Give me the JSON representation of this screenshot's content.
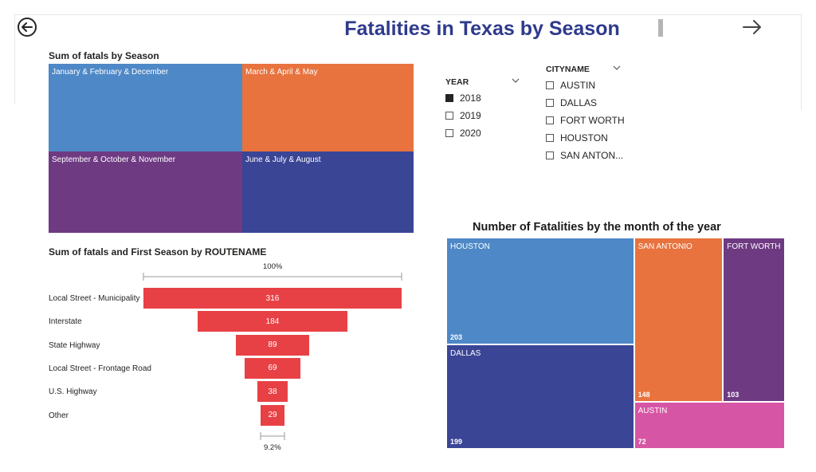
{
  "page": {
    "title": "Fatalities in Texas by Season"
  },
  "nav": {
    "back_icon": "back-arrow-icon",
    "forward_icon": "forward-arrow-icon"
  },
  "season_treemap": {
    "title": "Sum of fatals by Season",
    "tiles": [
      {
        "label": "January & February & December",
        "color": "#4e88c7"
      },
      {
        "label": "March & April & May",
        "color": "#e8733e"
      },
      {
        "label": "September & October & November",
        "color": "#6e3a82"
      },
      {
        "label": "June & July & August",
        "color": "#3a4596"
      }
    ]
  },
  "year_slicer": {
    "header": "YEAR",
    "options": [
      {
        "label": "2018",
        "checked": true
      },
      {
        "label": "2019",
        "checked": false
      },
      {
        "label": "2020",
        "checked": false
      }
    ]
  },
  "city_slicer": {
    "header": "CITYNAME",
    "options": [
      {
        "label": "AUSTIN",
        "checked": false
      },
      {
        "label": "DALLAS",
        "checked": false
      },
      {
        "label": "FORT WORTH",
        "checked": false
      },
      {
        "label": "HOUSTON",
        "checked": false
      },
      {
        "label": "SAN ANTON...",
        "checked": false
      }
    ]
  },
  "chart_data": [
    {
      "type": "funnel",
      "title": "Sum of fatals and First Season by ROUTENAME",
      "categories": [
        "Local Street - Municipality",
        "Interstate",
        "State Highway",
        "Local Street - Frontage Road",
        "U.S. Highway",
        "Other"
      ],
      "values": [
        316,
        184,
        89,
        69,
        38,
        29
      ],
      "color": "#e84145",
      "top_percent_label": "100%",
      "bottom_percent_label": "9.2%"
    },
    {
      "type": "treemap",
      "title": "Number of Fatalities by the month of the year",
      "items": [
        {
          "label": "HOUSTON",
          "value": 203,
          "color": "#4e88c7"
        },
        {
          "label": "DALLAS",
          "value": 199,
          "color": "#3a4596"
        },
        {
          "label": "SAN ANTONIO",
          "value": 148,
          "color": "#e8733e"
        },
        {
          "label": "FORT WORTH",
          "value": 103,
          "color": "#6e3a82"
        },
        {
          "label": "AUSTIN",
          "value": 72,
          "color": "#d755a5"
        }
      ]
    }
  ]
}
